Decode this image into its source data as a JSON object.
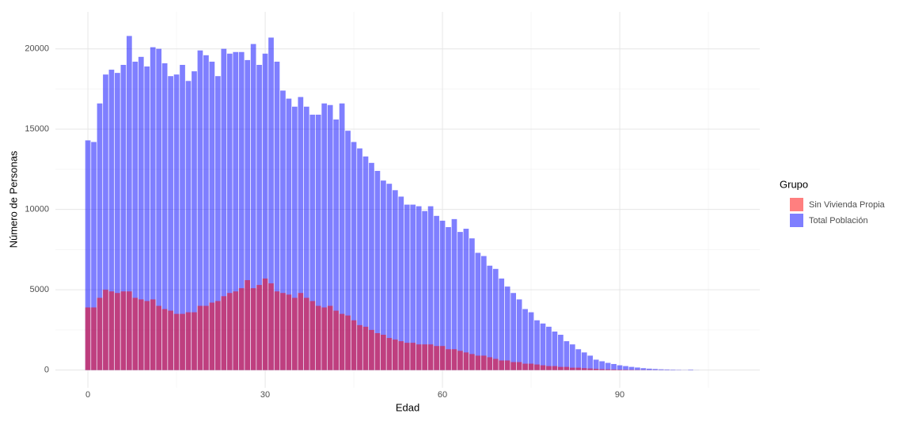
{
  "chart_data": {
    "type": "bar",
    "x_label": "Edad",
    "y_label": "Número de Personas",
    "legend_title": "Grupo",
    "legend_position": "right",
    "opacity": 0.5,
    "grid": true,
    "x": [
      0,
      1,
      2,
      3,
      4,
      5,
      6,
      7,
      8,
      9,
      10,
      11,
      12,
      13,
      14,
      15,
      16,
      17,
      18,
      19,
      20,
      21,
      22,
      23,
      24,
      25,
      26,
      27,
      28,
      29,
      30,
      31,
      32,
      33,
      34,
      35,
      36,
      37,
      38,
      39,
      40,
      41,
      42,
      43,
      44,
      45,
      46,
      47,
      48,
      49,
      50,
      51,
      52,
      53,
      54,
      55,
      56,
      57,
      58,
      59,
      60,
      61,
      62,
      63,
      64,
      65,
      66,
      67,
      68,
      69,
      70,
      71,
      72,
      73,
      74,
      75,
      76,
      77,
      78,
      79,
      80,
      81,
      82,
      83,
      84,
      85,
      86,
      87,
      88,
      89,
      90,
      91,
      92,
      93,
      94,
      95,
      96,
      97,
      98,
      99,
      100,
      101,
      102,
      103
    ],
    "series": [
      {
        "name": "Sin Vivienda Propia",
        "color": "#ff0000",
        "values": [
          3900,
          3900,
          4500,
          5000,
          4900,
          4800,
          4900,
          4900,
          4500,
          4400,
          4300,
          4400,
          4000,
          3800,
          3700,
          3500,
          3500,
          3600,
          3600,
          4000,
          4000,
          4200,
          4300,
          4600,
          4800,
          4900,
          5100,
          5600,
          5100,
          5300,
          5700,
          5400,
          4900,
          4800,
          4700,
          4500,
          4800,
          4500,
          4300,
          4000,
          3900,
          4000,
          3700,
          3500,
          3400,
          3100,
          2800,
          2700,
          2500,
          2300,
          2200,
          2000,
          1900,
          1800,
          1700,
          1700,
          1600,
          1600,
          1600,
          1500,
          1500,
          1300,
          1300,
          1200,
          1100,
          1000,
          900,
          900,
          800,
          700,
          600,
          600,
          500,
          500,
          400,
          400,
          350,
          300,
          250,
          250,
          200,
          200,
          150,
          150,
          120,
          100,
          80,
          60,
          50,
          40,
          30,
          25,
          20,
          15,
          10,
          8,
          6,
          4,
          3,
          2,
          1,
          1,
          1,
          0
        ]
      },
      {
        "name": "Total Población",
        "color": "#0000ff",
        "values": [
          14300,
          14200,
          16600,
          18400,
          18700,
          18500,
          19000,
          20800,
          19200,
          19500,
          18900,
          20100,
          20000,
          19100,
          18300,
          18400,
          19000,
          18000,
          18600,
          19900,
          19600,
          19200,
          18300,
          20000,
          19700,
          19800,
          19800,
          19300,
          20300,
          19000,
          19700,
          20700,
          19200,
          17400,
          16900,
          16400,
          17000,
          16400,
          15900,
          15900,
          16600,
          16500,
          15600,
          16600,
          14900,
          14200,
          13800,
          13300,
          12900,
          12400,
          11800,
          11600,
          11200,
          10800,
          10300,
          10300,
          10200,
          9900,
          10200,
          9600,
          9300,
          8900,
          9400,
          8600,
          8800,
          8200,
          7300,
          7100,
          6500,
          6300,
          5700,
          5200,
          4800,
          4400,
          3800,
          3600,
          3100,
          2900,
          2700,
          2400,
          2200,
          1800,
          1600,
          1300,
          1100,
          900,
          650,
          550,
          450,
          380,
          300,
          250,
          200,
          160,
          120,
          90,
          70,
          50,
          40,
          30,
          20,
          10,
          30,
          5
        ]
      }
    ],
    "xlim": [
      -5.5,
      113.7
    ],
    "xticks": [
      0,
      30,
      60,
      90
    ],
    "x_minor_grid": [
      15,
      45,
      75,
      105
    ],
    "ylim": [
      -1100,
      22300
    ],
    "yticks": [
      0,
      5000,
      10000,
      15000,
      20000
    ],
    "y_minor_grid": [
      2500,
      7500,
      12500,
      17500
    ]
  }
}
